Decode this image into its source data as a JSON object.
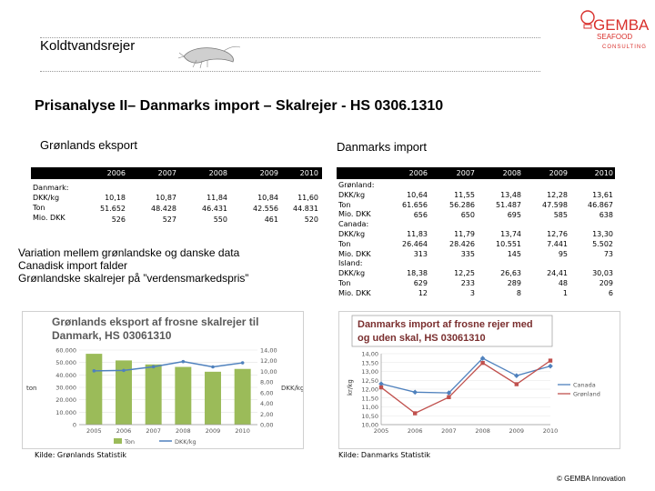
{
  "header": {
    "title": "Koldtvandsrejer"
  },
  "logo": {
    "name": "GEMBA",
    "line2": "SEAFOOD",
    "line3": "CONSULTING",
    "color": "#d9302c"
  },
  "slide_title": "Prisanalyse II– Danmarks import – Skalrejer - HS 0306.1310",
  "left": {
    "subtitle": "Grønlands eksport",
    "table": {
      "years": [
        "2006",
        "2007",
        "2008",
        "2009",
        "2010"
      ],
      "label_block": "Danmark:\nDKK/kg\nTon\nMio. DKK",
      "rows": [
        [
          "10,18",
          "10,87",
          "11,84",
          "10,84",
          "11,60"
        ],
        [
          "51.652",
          "48.428",
          "46.431",
          "42.556",
          "44.831"
        ],
        [
          "526",
          "527",
          "550",
          "461",
          "520"
        ]
      ]
    },
    "bullets": [
      "Variation mellem grønlandske og danske data",
      "Canadisk import falder",
      "Grønlandske skalrejer på ”verdensmarkedspris”"
    ],
    "source": "Kilde: Grønlands Statistik"
  },
  "right": {
    "subtitle": "Danmarks import",
    "table": {
      "years": [
        "2006",
        "2007",
        "2008",
        "2009",
        "2010"
      ],
      "label_block": "Grønland:\nDKK/kg\nTon\nMio. DKK\nCanada:\nDKK/kg\nTon\nMio. DKK\nIsland:\nDKK/kg\nTon\nMio. DKK",
      "groups": [
        [
          [
            "10,64",
            "11,55",
            "13,48",
            "12,28",
            "13,61"
          ],
          [
            "61.656",
            "56.286",
            "51.487",
            "47.598",
            "46.867"
          ],
          [
            "656",
            "650",
            "695",
            "585",
            "638"
          ]
        ],
        [
          [
            "11,83",
            "11,79",
            "13,74",
            "12,76",
            "13,30"
          ],
          [
            "26.464",
            "28.426",
            "10.551",
            "7.441",
            "5.502"
          ],
          [
            "313",
            "335",
            "145",
            "95",
            "73"
          ]
        ],
        [
          [
            "18,38",
            "12,25",
            "26,63",
            "24,41",
            "30,03"
          ],
          [
            "629",
            "233",
            "289",
            "48",
            "209"
          ],
          [
            "12",
            "3",
            "8",
            "1",
            "6"
          ]
        ]
      ]
    },
    "source": "Kilde: Danmarks Statistik"
  },
  "copyright": "© GEMBA Innovation",
  "chart_data": [
    {
      "type": "bar",
      "title": "Grønlands eksport af frosne skalrejer til Danmark, HS 03061310",
      "categories": [
        "2005",
        "2006",
        "2007",
        "2008",
        "2009",
        "2010"
      ],
      "ylabel": "ton",
      "y2label": "DKK/kg",
      "ylim": [
        0,
        60000
      ],
      "yticks": [
        "0",
        "10.000",
        "20.000",
        "30.000",
        "40.000",
        "50.000",
        "60.000"
      ],
      "y2lim": [
        0,
        14
      ],
      "y2ticks": [
        "0,00",
        "2,00",
        "4,00",
        "6,00",
        "8,00",
        "10,00",
        "12,00",
        "14,00"
      ],
      "series": [
        {
          "name": "Ton",
          "type": "bar",
          "color": "#9bbb59",
          "values": [
            57000,
            51652,
            48428,
            46431,
            42556,
            44831
          ]
        },
        {
          "name": "DKK/kg",
          "type": "line",
          "color": "#4f81bd",
          "values": [
            10.1,
            10.18,
            10.87,
            11.84,
            10.84,
            11.6
          ]
        }
      ],
      "legend": "bottom"
    },
    {
      "type": "line",
      "title": "Danmarks import af frosne rejer med og uden skal, HS 03061310",
      "categories": [
        "2005",
        "2006",
        "2007",
        "2008",
        "2009",
        "2010"
      ],
      "ylabel": "kr/kg",
      "ylim": [
        10,
        14
      ],
      "yticks": [
        "10,00",
        "10,50",
        "11,00",
        "11,50",
        "12,00",
        "12,50",
        "13,00",
        "13,50",
        "14,00"
      ],
      "series": [
        {
          "name": "Canada",
          "color": "#4f81bd",
          "values": [
            12.3,
            11.83,
            11.79,
            13.74,
            12.76,
            13.3
          ]
        },
        {
          "name": "Grønland",
          "color": "#c0504d",
          "values": [
            12.1,
            10.64,
            11.55,
            13.48,
            12.28,
            13.61
          ]
        }
      ],
      "legend": "right"
    }
  ]
}
